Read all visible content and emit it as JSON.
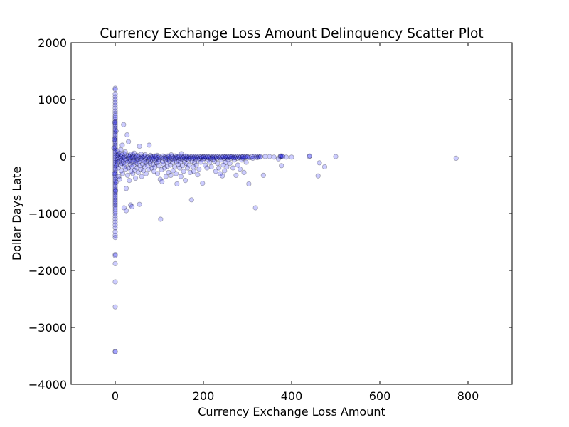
{
  "chart_data": {
    "type": "scatter",
    "title": "Currency Exchange Loss Amount Delinquency Scatter Plot",
    "xlabel": "Currency Exchange Loss Amount",
    "ylabel": "Dollar Days Late",
    "xlim": [
      -100,
      900
    ],
    "ylim": [
      -4000,
      2000
    ],
    "xticks": [
      0,
      200,
      400,
      600,
      800
    ],
    "yticks": [
      -4000,
      -3000,
      -2000,
      -1000,
      0,
      1000,
      2000
    ],
    "xtick_labels": [
      "0",
      "200",
      "400",
      "600",
      "800"
    ],
    "ytick_labels": [
      "−4000",
      "−3000",
      "−2000",
      "−1000",
      "0",
      "1000",
      "2000"
    ],
    "grid": false,
    "marker_color": "#0000ff",
    "marker_alpha": 0.2,
    "points": [
      [
        0,
        1200
      ],
      [
        0,
        1180
      ],
      [
        0,
        1100
      ],
      [
        0,
        1050
      ],
      [
        0,
        1000
      ],
      [
        0,
        950
      ],
      [
        0,
        900
      ],
      [
        0,
        850
      ],
      [
        0,
        800
      ],
      [
        0,
        760
      ],
      [
        0,
        720
      ],
      [
        0,
        690
      ],
      [
        0,
        660
      ],
      [
        0,
        620
      ],
      [
        0,
        590
      ],
      [
        0,
        560
      ],
      [
        0,
        530
      ],
      [
        0,
        500
      ],
      [
        0,
        470
      ],
      [
        0,
        440
      ],
      [
        0,
        410
      ],
      [
        0,
        380
      ],
      [
        0,
        350
      ],
      [
        0,
        320
      ],
      [
        0,
        290
      ],
      [
        0,
        260
      ],
      [
        0,
        230
      ],
      [
        0,
        200
      ],
      [
        0,
        170
      ],
      [
        0,
        140
      ],
      [
        0,
        110
      ],
      [
        0,
        80
      ],
      [
        0,
        50
      ],
      [
        0,
        20
      ],
      [
        0,
        -10
      ],
      [
        0,
        -40
      ],
      [
        0,
        -70
      ],
      [
        0,
        -100
      ],
      [
        0,
        -130
      ],
      [
        0,
        -160
      ],
      [
        0,
        -190
      ],
      [
        0,
        -220
      ],
      [
        0,
        -250
      ],
      [
        0,
        -280
      ],
      [
        0,
        -310
      ],
      [
        0,
        -340
      ],
      [
        0,
        -370
      ],
      [
        0,
        -400
      ],
      [
        0,
        -430
      ],
      [
        0,
        -460
      ],
      [
        0,
        -490
      ],
      [
        0,
        -520
      ],
      [
        0,
        -550
      ],
      [
        0,
        -580
      ],
      [
        0,
        -610
      ],
      [
        0,
        -640
      ],
      [
        0,
        -670
      ],
      [
        0,
        -700
      ],
      [
        0,
        -730
      ],
      [
        0,
        -760
      ],
      [
        0,
        -790
      ],
      [
        0,
        -820
      ],
      [
        0,
        -850
      ],
      [
        0,
        -880
      ],
      [
        0,
        -920
      ],
      [
        0,
        -960
      ],
      [
        0,
        -1000
      ],
      [
        0,
        -1050
      ],
      [
        0,
        -1100
      ],
      [
        0,
        -1150
      ],
      [
        0,
        -1200
      ],
      [
        0,
        -1250
      ],
      [
        0,
        -1320
      ],
      [
        0,
        -1380
      ],
      [
        0,
        -1420
      ],
      [
        0,
        -1720
      ],
      [
        0,
        -1740
      ],
      [
        0,
        -1880
      ],
      [
        0,
        -2200
      ],
      [
        0,
        -2640
      ],
      [
        0,
        -3420
      ],
      [
        0,
        -3430
      ],
      [
        -2,
        300
      ],
      [
        -2,
        -300
      ],
      [
        2,
        450
      ],
      [
        2,
        -450
      ],
      [
        -3,
        150
      ],
      [
        3,
        -150
      ],
      [
        -1,
        600
      ],
      [
        1,
        -600
      ],
      [
        5,
        100
      ],
      [
        5,
        -100
      ],
      [
        5,
        20
      ],
      [
        5,
        -50
      ],
      [
        7,
        40
      ],
      [
        7,
        -200
      ],
      [
        8,
        -20
      ],
      [
        8,
        -350
      ],
      [
        10,
        60
      ],
      [
        10,
        -80
      ],
      [
        10,
        -400
      ],
      [
        12,
        10
      ],
      [
        12,
        -30
      ],
      [
        12,
        -150
      ],
      [
        13,
        120
      ],
      [
        14,
        -250
      ],
      [
        15,
        30
      ],
      [
        15,
        -60
      ],
      [
        15,
        -120
      ],
      [
        16,
        200
      ],
      [
        17,
        -300
      ],
      [
        18,
        -20
      ],
      [
        18,
        -90
      ],
      [
        19,
        560
      ],
      [
        20,
        50
      ],
      [
        20,
        -10
      ],
      [
        20,
        -180
      ],
      [
        20,
        -900
      ],
      [
        22,
        -40
      ],
      [
        22,
        -130
      ],
      [
        23,
        80
      ],
      [
        24,
        -220
      ],
      [
        25,
        -60
      ],
      [
        25,
        -560
      ],
      [
        25,
        -950
      ],
      [
        26,
        10
      ],
      [
        27,
        380
      ],
      [
        28,
        -100
      ],
      [
        28,
        -330
      ],
      [
        30,
        20
      ],
      [
        30,
        -30
      ],
      [
        30,
        -200
      ],
      [
        30,
        260
      ],
      [
        32,
        -80
      ],
      [
        32,
        -420
      ],
      [
        33,
        0
      ],
      [
        34,
        -140
      ],
      [
        35,
        40
      ],
      [
        35,
        -50
      ],
      [
        35,
        -850
      ],
      [
        36,
        -260
      ],
      [
        37,
        -20
      ],
      [
        38,
        -180
      ],
      [
        38,
        -880
      ],
      [
        39,
        -90
      ],
      [
        40,
        30
      ],
      [
        40,
        -10
      ],
      [
        40,
        -300
      ],
      [
        42,
        -60
      ],
      [
        42,
        -150
      ],
      [
        43,
        60
      ],
      [
        44,
        -240
      ],
      [
        45,
        -20
      ],
      [
        45,
        -100
      ],
      [
        46,
        -380
      ],
      [
        47,
        10
      ],
      [
        48,
        -70
      ],
      [
        49,
        -200
      ],
      [
        50,
        20
      ],
      [
        50,
        -40
      ],
      [
        50,
        -120
      ],
      [
        52,
        -280
      ],
      [
        53,
        0
      ],
      [
        54,
        -90
      ],
      [
        55,
        -840
      ],
      [
        55,
        180
      ],
      [
        56,
        -160
      ],
      [
        57,
        -30
      ],
      [
        58,
        -220
      ],
      [
        59,
        40
      ],
      [
        60,
        -10
      ],
      [
        60,
        -60
      ],
      [
        60,
        -350
      ],
      [
        62,
        -130
      ],
      [
        63,
        -20
      ],
      [
        64,
        -250
      ],
      [
        65,
        10
      ],
      [
        66,
        -80
      ],
      [
        67,
        -180
      ],
      [
        68,
        30
      ],
      [
        69,
        -40
      ],
      [
        70,
        -100
      ],
      [
        70,
        -300
      ],
      [
        72,
        -20
      ],
      [
        73,
        -150
      ],
      [
        74,
        0
      ],
      [
        75,
        -60
      ],
      [
        76,
        -220
      ],
      [
        77,
        200
      ],
      [
        78,
        -30
      ],
      [
        79,
        -120
      ],
      [
        80,
        20
      ],
      [
        80,
        -80
      ],
      [
        82,
        -10
      ],
      [
        83,
        -200
      ],
      [
        84,
        -50
      ],
      [
        85,
        0
      ],
      [
        86,
        -140
      ],
      [
        87,
        -30
      ],
      [
        88,
        -260
      ],
      [
        89,
        10
      ],
      [
        90,
        -70
      ],
      [
        90,
        -180
      ],
      [
        92,
        0
      ],
      [
        93,
        -40
      ],
      [
        94,
        -110
      ],
      [
        95,
        20
      ],
      [
        96,
        -300
      ],
      [
        97,
        -20
      ],
      [
        98,
        -90
      ],
      [
        99,
        -160
      ],
      [
        100,
        0
      ],
      [
        100,
        -60
      ],
      [
        102,
        -400
      ],
      [
        103,
        -1100
      ],
      [
        104,
        -20
      ],
      [
        105,
        -230
      ],
      [
        106,
        -440
      ],
      [
        107,
        -80
      ],
      [
        108,
        10
      ],
      [
        109,
        -130
      ],
      [
        110,
        -30
      ],
      [
        112,
        -200
      ],
      [
        113,
        0
      ],
      [
        114,
        -60
      ],
      [
        115,
        -350
      ],
      [
        116,
        -20
      ],
      [
        117,
        -100
      ],
      [
        118,
        -170
      ],
      [
        119,
        10
      ],
      [
        120,
        -50
      ],
      [
        121,
        -280
      ],
      [
        122,
        0
      ],
      [
        123,
        -80
      ],
      [
        124,
        -20
      ],
      [
        125,
        -150
      ],
      [
        126,
        -330
      ],
      [
        127,
        30
      ],
      [
        128,
        -40
      ],
      [
        130,
        0
      ],
      [
        130,
        -100
      ],
      [
        131,
        -250
      ],
      [
        133,
        -20
      ],
      [
        134,
        -60
      ],
      [
        135,
        -180
      ],
      [
        136,
        10
      ],
      [
        137,
        -30
      ],
      [
        138,
        -300
      ],
      [
        139,
        -90
      ],
      [
        140,
        0
      ],
      [
        140,
        -480
      ],
      [
        142,
        -20
      ],
      [
        143,
        -140
      ],
      [
        144,
        -60
      ],
      [
        145,
        10
      ],
      [
        146,
        -200
      ],
      [
        147,
        -30
      ],
      [
        148,
        -100
      ],
      [
        149,
        -350
      ],
      [
        150,
        0
      ],
      [
        150,
        50
      ],
      [
        152,
        -40
      ],
      [
        153,
        -160
      ],
      [
        154,
        -20
      ],
      [
        155,
        -260
      ],
      [
        156,
        0
      ],
      [
        157,
        -80
      ],
      [
        158,
        -30
      ],
      [
        159,
        -420
      ],
      [
        160,
        10
      ],
      [
        161,
        -120
      ],
      [
        162,
        -40
      ],
      [
        163,
        0
      ],
      [
        164,
        -200
      ],
      [
        165,
        -20
      ],
      [
        166,
        -60
      ],
      [
        167,
        -150
      ],
      [
        168,
        0
      ],
      [
        169,
        -30
      ],
      [
        170,
        -280
      ],
      [
        172,
        -10
      ],
      [
        173,
        -760
      ],
      [
        174,
        -80
      ],
      [
        175,
        0
      ],
      [
        176,
        -30
      ],
      [
        177,
        -180
      ],
      [
        178,
        -260
      ],
      [
        179,
        -20
      ],
      [
        180,
        0
      ],
      [
        180,
        -100
      ],
      [
        182,
        -40
      ],
      [
        184,
        -150
      ],
      [
        185,
        0
      ],
      [
        186,
        -20
      ],
      [
        187,
        -320
      ],
      [
        188,
        -60
      ],
      [
        190,
        0
      ],
      [
        190,
        -220
      ],
      [
        192,
        -30
      ],
      [
        194,
        -100
      ],
      [
        195,
        0
      ],
      [
        196,
        -20
      ],
      [
        198,
        -470
      ],
      [
        199,
        -60
      ],
      [
        200,
        0
      ],
      [
        200,
        -10
      ],
      [
        202,
        -30
      ],
      [
        204,
        -150
      ],
      [
        205,
        0
      ],
      [
        207,
        -20
      ],
      [
        208,
        -200
      ],
      [
        210,
        0
      ],
      [
        210,
        -60
      ],
      [
        212,
        -20
      ],
      [
        214,
        -100
      ],
      [
        215,
        0
      ],
      [
        216,
        -30
      ],
      [
        218,
        -180
      ],
      [
        220,
        0
      ],
      [
        220,
        -20
      ],
      [
        222,
        -50
      ],
      [
        224,
        0
      ],
      [
        225,
        -80
      ],
      [
        227,
        -20
      ],
      [
        228,
        -260
      ],
      [
        230,
        0
      ],
      [
        230,
        -30
      ],
      [
        232,
        -120
      ],
      [
        234,
        0
      ],
      [
        235,
        -200
      ],
      [
        236,
        -20
      ],
      [
        238,
        -300
      ],
      [
        240,
        0
      ],
      [
        240,
        -60
      ],
      [
        242,
        -20
      ],
      [
        243,
        -340
      ],
      [
        245,
        0
      ],
      [
        245,
        -150
      ],
      [
        247,
        -30
      ],
      [
        248,
        -250
      ],
      [
        249,
        -10
      ],
      [
        250,
        0
      ],
      [
        250,
        -100
      ],
      [
        252,
        -20
      ],
      [
        253,
        -180
      ],
      [
        255,
        0
      ],
      [
        256,
        -60
      ],
      [
        258,
        -20
      ],
      [
        260,
        0
      ],
      [
        260,
        -120
      ],
      [
        262,
        -30
      ],
      [
        264,
        -10
      ],
      [
        265,
        0
      ],
      [
        267,
        -200
      ],
      [
        268,
        -20
      ],
      [
        270,
        0
      ],
      [
        270,
        -60
      ],
      [
        272,
        -20
      ],
      [
        274,
        -330
      ],
      [
        275,
        0
      ],
      [
        277,
        -30
      ],
      [
        278,
        -150
      ],
      [
        280,
        0
      ],
      [
        282,
        -20
      ],
      [
        283,
        -220
      ],
      [
        285,
        0
      ],
      [
        287,
        -60
      ],
      [
        288,
        -10
      ],
      [
        290,
        0
      ],
      [
        290,
        -30
      ],
      [
        292,
        -280
      ],
      [
        294,
        -20
      ],
      [
        295,
        0
      ],
      [
        297,
        -100
      ],
      [
        300,
        0
      ],
      [
        300,
        -10
      ],
      [
        303,
        -480
      ],
      [
        305,
        -20
      ],
      [
        310,
        0
      ],
      [
        312,
        -30
      ],
      [
        315,
        0
      ],
      [
        318,
        -900
      ],
      [
        320,
        0
      ],
      [
        322,
        -20
      ],
      [
        325,
        0
      ],
      [
        328,
        -10
      ],
      [
        330,
        0
      ],
      [
        336,
        -330
      ],
      [
        340,
        0
      ],
      [
        350,
        0
      ],
      [
        360,
        -10
      ],
      [
        370,
        -40
      ],
      [
        374,
        0
      ],
      [
        375,
        10
      ],
      [
        376,
        0
      ],
      [
        377,
        -160
      ],
      [
        378,
        10
      ],
      [
        380,
        0
      ],
      [
        388,
        -10
      ],
      [
        400,
        -10
      ],
      [
        440,
        0
      ],
      [
        441,
        10
      ],
      [
        460,
        -340
      ],
      [
        463,
        -110
      ],
      [
        475,
        -180
      ],
      [
        500,
        0
      ],
      [
        773,
        -30
      ]
    ]
  }
}
